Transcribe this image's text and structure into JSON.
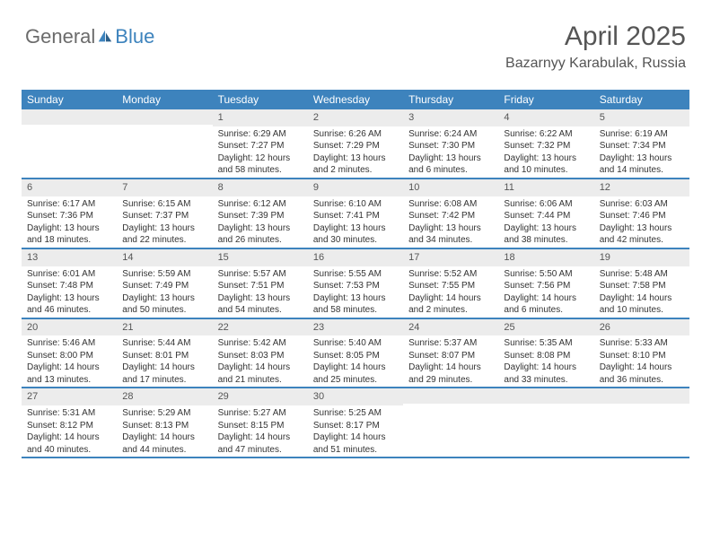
{
  "logo": {
    "text1": "General",
    "text2": "Blue"
  },
  "header": {
    "month_year": "April 2025",
    "location": "Bazarnyy Karabulak, Russia"
  },
  "colors": {
    "brand_blue": "#3d83bd",
    "logo_gray": "#6b6b6b",
    "daynum_bg": "#ececec",
    "text": "#333333"
  },
  "day_names": [
    "Sunday",
    "Monday",
    "Tuesday",
    "Wednesday",
    "Thursday",
    "Friday",
    "Saturday"
  ],
  "weeks": [
    [
      {
        "n": "",
        "lines": [
          "",
          "",
          "",
          ""
        ]
      },
      {
        "n": "",
        "lines": [
          "",
          "",
          "",
          ""
        ]
      },
      {
        "n": "1",
        "lines": [
          "Sunrise: 6:29 AM",
          "Sunset: 7:27 PM",
          "Daylight: 12 hours",
          "and 58 minutes."
        ]
      },
      {
        "n": "2",
        "lines": [
          "Sunrise: 6:26 AM",
          "Sunset: 7:29 PM",
          "Daylight: 13 hours",
          "and 2 minutes."
        ]
      },
      {
        "n": "3",
        "lines": [
          "Sunrise: 6:24 AM",
          "Sunset: 7:30 PM",
          "Daylight: 13 hours",
          "and 6 minutes."
        ]
      },
      {
        "n": "4",
        "lines": [
          "Sunrise: 6:22 AM",
          "Sunset: 7:32 PM",
          "Daylight: 13 hours",
          "and 10 minutes."
        ]
      },
      {
        "n": "5",
        "lines": [
          "Sunrise: 6:19 AM",
          "Sunset: 7:34 PM",
          "Daylight: 13 hours",
          "and 14 minutes."
        ]
      }
    ],
    [
      {
        "n": "6",
        "lines": [
          "Sunrise: 6:17 AM",
          "Sunset: 7:36 PM",
          "Daylight: 13 hours",
          "and 18 minutes."
        ]
      },
      {
        "n": "7",
        "lines": [
          "Sunrise: 6:15 AM",
          "Sunset: 7:37 PM",
          "Daylight: 13 hours",
          "and 22 minutes."
        ]
      },
      {
        "n": "8",
        "lines": [
          "Sunrise: 6:12 AM",
          "Sunset: 7:39 PM",
          "Daylight: 13 hours",
          "and 26 minutes."
        ]
      },
      {
        "n": "9",
        "lines": [
          "Sunrise: 6:10 AM",
          "Sunset: 7:41 PM",
          "Daylight: 13 hours",
          "and 30 minutes."
        ]
      },
      {
        "n": "10",
        "lines": [
          "Sunrise: 6:08 AM",
          "Sunset: 7:42 PM",
          "Daylight: 13 hours",
          "and 34 minutes."
        ]
      },
      {
        "n": "11",
        "lines": [
          "Sunrise: 6:06 AM",
          "Sunset: 7:44 PM",
          "Daylight: 13 hours",
          "and 38 minutes."
        ]
      },
      {
        "n": "12",
        "lines": [
          "Sunrise: 6:03 AM",
          "Sunset: 7:46 PM",
          "Daylight: 13 hours",
          "and 42 minutes."
        ]
      }
    ],
    [
      {
        "n": "13",
        "lines": [
          "Sunrise: 6:01 AM",
          "Sunset: 7:48 PM",
          "Daylight: 13 hours",
          "and 46 minutes."
        ]
      },
      {
        "n": "14",
        "lines": [
          "Sunrise: 5:59 AM",
          "Sunset: 7:49 PM",
          "Daylight: 13 hours",
          "and 50 minutes."
        ]
      },
      {
        "n": "15",
        "lines": [
          "Sunrise: 5:57 AM",
          "Sunset: 7:51 PM",
          "Daylight: 13 hours",
          "and 54 minutes."
        ]
      },
      {
        "n": "16",
        "lines": [
          "Sunrise: 5:55 AM",
          "Sunset: 7:53 PM",
          "Daylight: 13 hours",
          "and 58 minutes."
        ]
      },
      {
        "n": "17",
        "lines": [
          "Sunrise: 5:52 AM",
          "Sunset: 7:55 PM",
          "Daylight: 14 hours",
          "and 2 minutes."
        ]
      },
      {
        "n": "18",
        "lines": [
          "Sunrise: 5:50 AM",
          "Sunset: 7:56 PM",
          "Daylight: 14 hours",
          "and 6 minutes."
        ]
      },
      {
        "n": "19",
        "lines": [
          "Sunrise: 5:48 AM",
          "Sunset: 7:58 PM",
          "Daylight: 14 hours",
          "and 10 minutes."
        ]
      }
    ],
    [
      {
        "n": "20",
        "lines": [
          "Sunrise: 5:46 AM",
          "Sunset: 8:00 PM",
          "Daylight: 14 hours",
          "and 13 minutes."
        ]
      },
      {
        "n": "21",
        "lines": [
          "Sunrise: 5:44 AM",
          "Sunset: 8:01 PM",
          "Daylight: 14 hours",
          "and 17 minutes."
        ]
      },
      {
        "n": "22",
        "lines": [
          "Sunrise: 5:42 AM",
          "Sunset: 8:03 PM",
          "Daylight: 14 hours",
          "and 21 minutes."
        ]
      },
      {
        "n": "23",
        "lines": [
          "Sunrise: 5:40 AM",
          "Sunset: 8:05 PM",
          "Daylight: 14 hours",
          "and 25 minutes."
        ]
      },
      {
        "n": "24",
        "lines": [
          "Sunrise: 5:37 AM",
          "Sunset: 8:07 PM",
          "Daylight: 14 hours",
          "and 29 minutes."
        ]
      },
      {
        "n": "25",
        "lines": [
          "Sunrise: 5:35 AM",
          "Sunset: 8:08 PM",
          "Daylight: 14 hours",
          "and 33 minutes."
        ]
      },
      {
        "n": "26",
        "lines": [
          "Sunrise: 5:33 AM",
          "Sunset: 8:10 PM",
          "Daylight: 14 hours",
          "and 36 minutes."
        ]
      }
    ],
    [
      {
        "n": "27",
        "lines": [
          "Sunrise: 5:31 AM",
          "Sunset: 8:12 PM",
          "Daylight: 14 hours",
          "and 40 minutes."
        ]
      },
      {
        "n": "28",
        "lines": [
          "Sunrise: 5:29 AM",
          "Sunset: 8:13 PM",
          "Daylight: 14 hours",
          "and 44 minutes."
        ]
      },
      {
        "n": "29",
        "lines": [
          "Sunrise: 5:27 AM",
          "Sunset: 8:15 PM",
          "Daylight: 14 hours",
          "and 47 minutes."
        ]
      },
      {
        "n": "30",
        "lines": [
          "Sunrise: 5:25 AM",
          "Sunset: 8:17 PM",
          "Daylight: 14 hours",
          "and 51 minutes."
        ]
      },
      {
        "n": "",
        "lines": [
          "",
          "",
          "",
          ""
        ]
      },
      {
        "n": "",
        "lines": [
          "",
          "",
          "",
          ""
        ]
      },
      {
        "n": "",
        "lines": [
          "",
          "",
          "",
          ""
        ]
      }
    ]
  ]
}
